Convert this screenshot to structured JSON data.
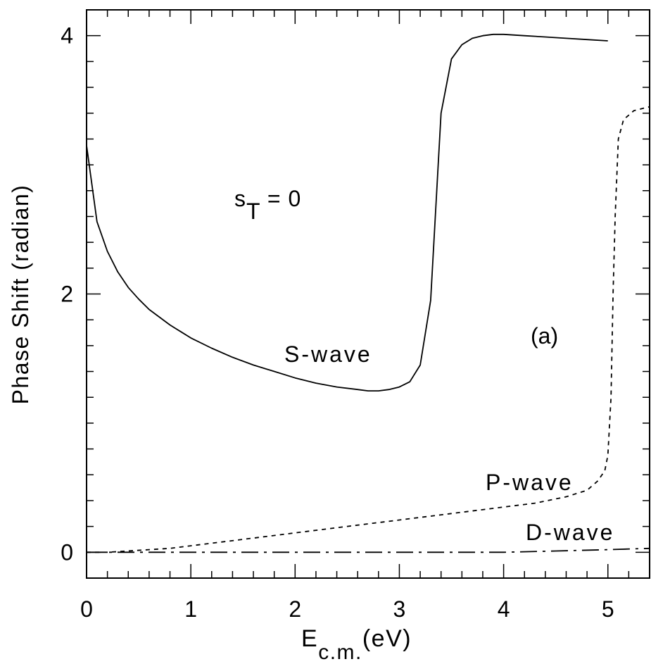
{
  "chart_data": {
    "type": "line",
    "title": "",
    "xlabel": "E",
    "xlabel_subscript": "c.m.",
    "xlabel_unit": "(eV)",
    "ylabel": "Phase Shift (radian)",
    "xlim": [
      0,
      5.4
    ],
    "ylim": [
      -0.2,
      4.2
    ],
    "xticks": [
      0,
      1,
      2,
      3,
      4,
      5
    ],
    "xtick_labels": [
      "0",
      "1",
      "2",
      "3",
      "4",
      "5"
    ],
    "yticks": [
      0,
      2,
      4
    ],
    "ytick_labels": [
      "0",
      "2",
      "4"
    ],
    "grid": false,
    "legend": "none",
    "annotations": {
      "spin_label_s": "s",
      "spin_label_sub": "T",
      "spin_label_rest": " = 0",
      "panel": "(a)",
      "s_wave": "S-wave",
      "p_wave": "P-wave",
      "d_wave": "D-wave"
    },
    "series": [
      {
        "label": "S-wave",
        "style": "solid",
        "x": [
          0,
          0.1,
          0.2,
          0.3,
          0.4,
          0.5,
          0.6,
          0.7,
          0.8,
          0.9,
          1.0,
          1.2,
          1.4,
          1.6,
          1.8,
          2.0,
          2.2,
          2.4,
          2.6,
          2.7,
          2.8,
          2.9,
          3.0,
          3.1,
          3.2,
          3.3,
          3.4,
          3.5,
          3.6,
          3.7,
          3.8,
          3.9,
          4.0,
          4.2,
          4.4,
          4.6,
          4.8,
          5.0
        ],
        "y": [
          3.15,
          2.56,
          2.33,
          2.17,
          2.05,
          1.96,
          1.88,
          1.82,
          1.76,
          1.71,
          1.66,
          1.58,
          1.51,
          1.45,
          1.4,
          1.35,
          1.31,
          1.28,
          1.26,
          1.25,
          1.25,
          1.26,
          1.28,
          1.32,
          1.45,
          1.95,
          3.4,
          3.82,
          3.93,
          3.98,
          4.0,
          4.01,
          4.01,
          4.0,
          3.99,
          3.98,
          3.97,
          3.96
        ]
      },
      {
        "label": "P-wave",
        "style": "dashed",
        "x": [
          0,
          0.2,
          0.4,
          0.6,
          0.8,
          1.0,
          1.5,
          2.0,
          2.5,
          3.0,
          3.5,
          4.0,
          4.3,
          4.6,
          4.8,
          4.9,
          4.97,
          5.0,
          5.03,
          5.05,
          5.07,
          5.1,
          5.15,
          5.25,
          5.4
        ],
        "y": [
          0.0,
          0.0,
          0.01,
          0.02,
          0.03,
          0.05,
          0.1,
          0.15,
          0.2,
          0.25,
          0.3,
          0.35,
          0.38,
          0.43,
          0.48,
          0.55,
          0.63,
          0.75,
          1.2,
          2.0,
          2.6,
          3.2,
          3.35,
          3.42,
          3.45
        ]
      },
      {
        "label": "D-wave",
        "style": "dashdot",
        "x": [
          0,
          1.0,
          2.0,
          3.0,
          4.0,
          4.5,
          5.0,
          5.4
        ],
        "y": [
          0.0,
          0.0,
          0.0,
          0.0,
          0.0,
          0.01,
          0.02,
          0.03
        ]
      }
    ]
  }
}
